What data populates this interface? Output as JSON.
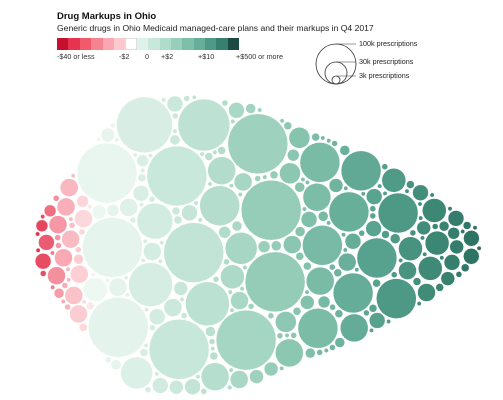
{
  "header": {
    "title": "Drug Markups in Ohio",
    "subtitle": "Generic drugs in Ohio Medicaid managed-care plans and their markups in Q4 2017"
  },
  "color_legend": {
    "swatches": [
      "#c8102e",
      "#e6334f",
      "#f15a6b",
      "#f68391",
      "#f9a7b2",
      "#fcc9cf",
      "#ffffff",
      "#dff2ea",
      "#c8e8db",
      "#b0dccb",
      "#97cfba",
      "#7ebfa9",
      "#66ae99",
      "#4f9a87",
      "#397f70",
      "#1d4a41"
    ],
    "tick_labels": [
      "-$40 or less",
      "-$2",
      "0",
      "+$2",
      "+$10",
      "+$500 or more"
    ]
  },
  "size_legend": {
    "labels": [
      "100k prescriptions",
      "30k prescriptions",
      "3k prescriptions"
    ]
  },
  "chart_data": {
    "type": "bubble-beeswarm",
    "title": "Drug Markups in Ohio",
    "subtitle": "Generic drugs in Ohio Medicaid managed-care plans and their markups in Q4 2017",
    "x_variable": "markup per prescription (USD)",
    "size_variable": "prescriptions",
    "color_scale": {
      "breaks": [
        "-$40 or less",
        "-$2",
        "0",
        "+$2",
        "+$10",
        "+$500 or more"
      ],
      "negative_color": "#c8102e",
      "zero_color": "#ffffff",
      "positive_color": "#1d4a41"
    },
    "size_reference": [
      {
        "label": "100k prescriptions",
        "prescriptions": 100000
      },
      {
        "label": "30k prescriptions",
        "prescriptions": 30000
      },
      {
        "label": "3k prescriptions",
        "prescriptions": 3000
      }
    ]
  }
}
